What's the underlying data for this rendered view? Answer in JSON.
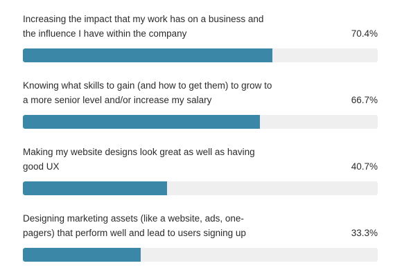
{
  "chart_data": {
    "type": "bar",
    "orientation": "horizontal",
    "bar_color": "#3a87a8",
    "track_color": "#efefef",
    "items": [
      {
        "label": "Increasing the impact that my work has on a business and the influence I have within the company",
        "value": 70.4,
        "display": "70.4%"
      },
      {
        "label": "Knowing what skills to gain (and how to get them) to grow to a more senior level and/or increase my salary",
        "value": 66.7,
        "display": "66.7%"
      },
      {
        "label": "Making my website designs look great as well as having good UX",
        "value": 40.7,
        "display": "40.7%"
      },
      {
        "label": "Designing marketing assets (like a website, ads, one-pagers) that perform well and lead to users signing up",
        "value": 33.3,
        "display": "33.3%"
      }
    ],
    "xlim": [
      0,
      100
    ]
  }
}
